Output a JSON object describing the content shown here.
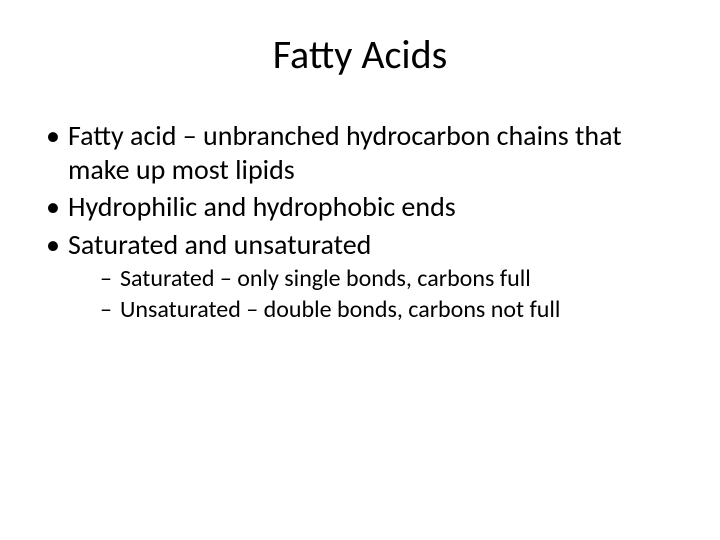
{
  "title": "Fatty Acids",
  "bullets": [
    {
      "text": "Fatty acid – unbranched hydrocarbon chains that make up most lipids"
    },
    {
      "text": "Hydrophilic and hydrophobic ends"
    },
    {
      "text": "Saturated and unsaturated",
      "sub": [
        {
          "text": "Saturated – only single bonds, carbons full"
        },
        {
          "text": "Unsaturated – double bonds, carbons not full"
        }
      ]
    }
  ],
  "colors": {
    "background": "#ffffff",
    "text": "#000000"
  },
  "typography": {
    "title_fontsize": 40,
    "bullet_fontsize": 28,
    "sub_fontsize": 24,
    "font_family": "Calibri"
  }
}
